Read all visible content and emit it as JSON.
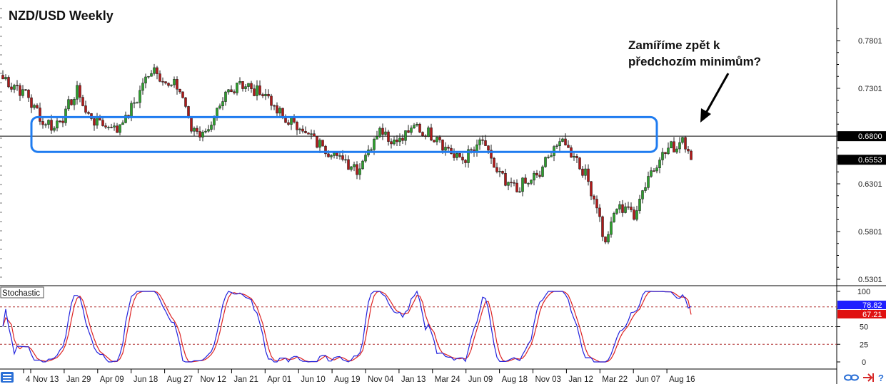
{
  "chart_data": {
    "type": "candlestick",
    "title": "NZD/USD Weekly",
    "annotation": "Zamíříme zpět k\npředchozím minimům?",
    "price_axis": {
      "range": [
        0.52,
        0.795
      ],
      "ticks": [
        "0.7801",
        "0.7301",
        "0.6801",
        "0.6301",
        "0.5801",
        "0.5301"
      ]
    },
    "horizontal_line": 0.68,
    "price_tags": [
      {
        "label": "0.6800",
        "value": 0.68,
        "bg": "#000000"
      },
      {
        "label": "0.6553",
        "value": 0.6553,
        "bg": "#000000"
      }
    ],
    "zone": {
      "from_index": 10,
      "to_index": 229,
      "top": 0.7,
      "bottom": 0.6635
    },
    "x_ticks": [
      "4",
      "Nov 13",
      "Jan 29",
      "Apr 09",
      "Jun 18",
      "Aug 27",
      "Nov 12",
      "Jan 21",
      "Apr 01",
      "Jun 10",
      "Aug 19",
      "Nov 04",
      "Jan 13",
      "Mar 24",
      "Jun 09",
      "Aug 18",
      "Nov 03",
      "Jan 12",
      "Mar 22",
      "Jun 07",
      "Aug 16"
    ],
    "close_path": [
      [
        0,
        0.74
      ],
      [
        8,
        0.725
      ],
      [
        14,
        0.695
      ],
      [
        18,
        0.69
      ],
      [
        22,
        0.705
      ],
      [
        26,
        0.728
      ],
      [
        30,
        0.7
      ],
      [
        35,
        0.693
      ],
      [
        40,
        0.688
      ],
      [
        45,
        0.708
      ],
      [
        50,
        0.74
      ],
      [
        53,
        0.752
      ],
      [
        57,
        0.735
      ],
      [
        62,
        0.73
      ],
      [
        66,
        0.688
      ],
      [
        70,
        0.683
      ],
      [
        74,
        0.695
      ],
      [
        78,
        0.722
      ],
      [
        83,
        0.738
      ],
      [
        87,
        0.728
      ],
      [
        92,
        0.725
      ],
      [
        96,
        0.705
      ],
      [
        100,
        0.695
      ],
      [
        104,
        0.69
      ],
      [
        108,
        0.678
      ],
      [
        112,
        0.67
      ],
      [
        116,
        0.66
      ],
      [
        120,
        0.655
      ],
      [
        124,
        0.645
      ],
      [
        128,
        0.665
      ],
      [
        132,
        0.69
      ],
      [
        136,
        0.675
      ],
      [
        140,
        0.678
      ],
      [
        144,
        0.69
      ],
      [
        148,
        0.683
      ],
      [
        152,
        0.68
      ],
      [
        156,
        0.665
      ],
      [
        160,
        0.655
      ],
      [
        164,
        0.662
      ],
      [
        168,
        0.675
      ],
      [
        172,
        0.648
      ],
      [
        176,
        0.63
      ],
      [
        180,
        0.625
      ],
      [
        184,
        0.632
      ],
      [
        188,
        0.64
      ],
      [
        192,
        0.665
      ],
      [
        196,
        0.675
      ],
      [
        200,
        0.66
      ],
      [
        203,
        0.645
      ],
      [
        206,
        0.625
      ],
      [
        209,
        0.595
      ],
      [
        211,
        0.565
      ],
      [
        214,
        0.6
      ],
      [
        218,
        0.608
      ],
      [
        221,
        0.595
      ],
      [
        224,
        0.625
      ],
      [
        228,
        0.648
      ],
      [
        232,
        0.665
      ],
      [
        236,
        0.67
      ],
      [
        238,
        0.678
      ],
      [
        241,
        0.665
      ]
    ],
    "stochastic": {
      "label": "Stochastic",
      "range": [
        0,
        100
      ],
      "ticks": [
        "100",
        "75",
        "50",
        "25",
        "0"
      ],
      "levels": [
        80,
        50,
        20
      ],
      "main_tag": {
        "label": "78.82",
        "value": 78.82,
        "bg": "#1f1fff"
      },
      "signal_tag": {
        "label": "67.21",
        "value": 67.21,
        "bg": "#e01010"
      },
      "main_color": "#2222dd",
      "signal_color": "#dd2222"
    },
    "colors": {
      "bull": "#2ca02c",
      "bear": "#b01818",
      "zone": "#1f7cf0",
      "wick": "#222222"
    }
  },
  "toolbar": {
    "link_icon": "link-icon",
    "arrow_icon": "arrow-right-icon",
    "help_label": "?"
  }
}
